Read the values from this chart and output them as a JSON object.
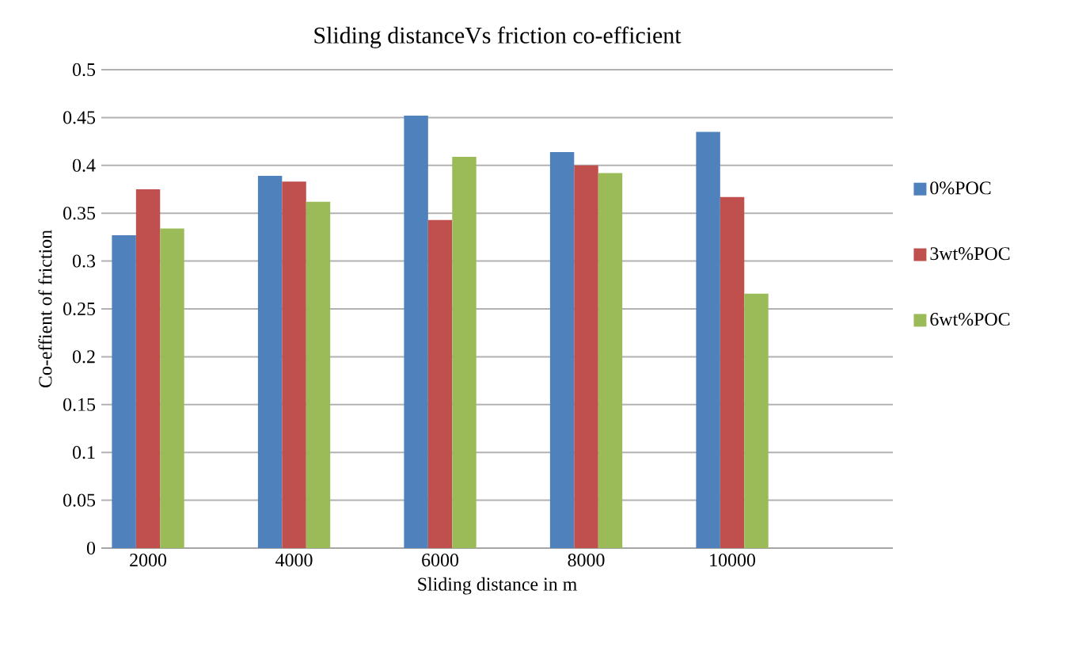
{
  "chart_data": {
    "type": "bar",
    "title": "Sliding distanceVs friction co-efficient",
    "xlabel": "Sliding distance in m",
    "ylabel": "Co-effient of friction",
    "categories": [
      "2000",
      "4000",
      "6000",
      "8000",
      "10000",
      null
    ],
    "series": [
      {
        "name": "0%POC",
        "color": "#4f81bd",
        "values": [
          0.327,
          0.389,
          0.452,
          0.414,
          0.435,
          null
        ]
      },
      {
        "name": "3wt%POC",
        "color": "#c0504d",
        "values": [
          0.375,
          0.383,
          0.343,
          0.4,
          0.367,
          null
        ]
      },
      {
        "name": "6wt%POC",
        "color": "#9bbb59",
        "values": [
          0.334,
          0.362,
          0.409,
          0.392,
          0.266,
          null
        ]
      }
    ],
    "ylim": [
      0,
      0.5
    ],
    "yticks": [
      0,
      0.05,
      0.1,
      0.15,
      0.2,
      0.25,
      0.3,
      0.35,
      0.4,
      0.45,
      0.5
    ],
    "grid": "y",
    "legend": "right"
  }
}
